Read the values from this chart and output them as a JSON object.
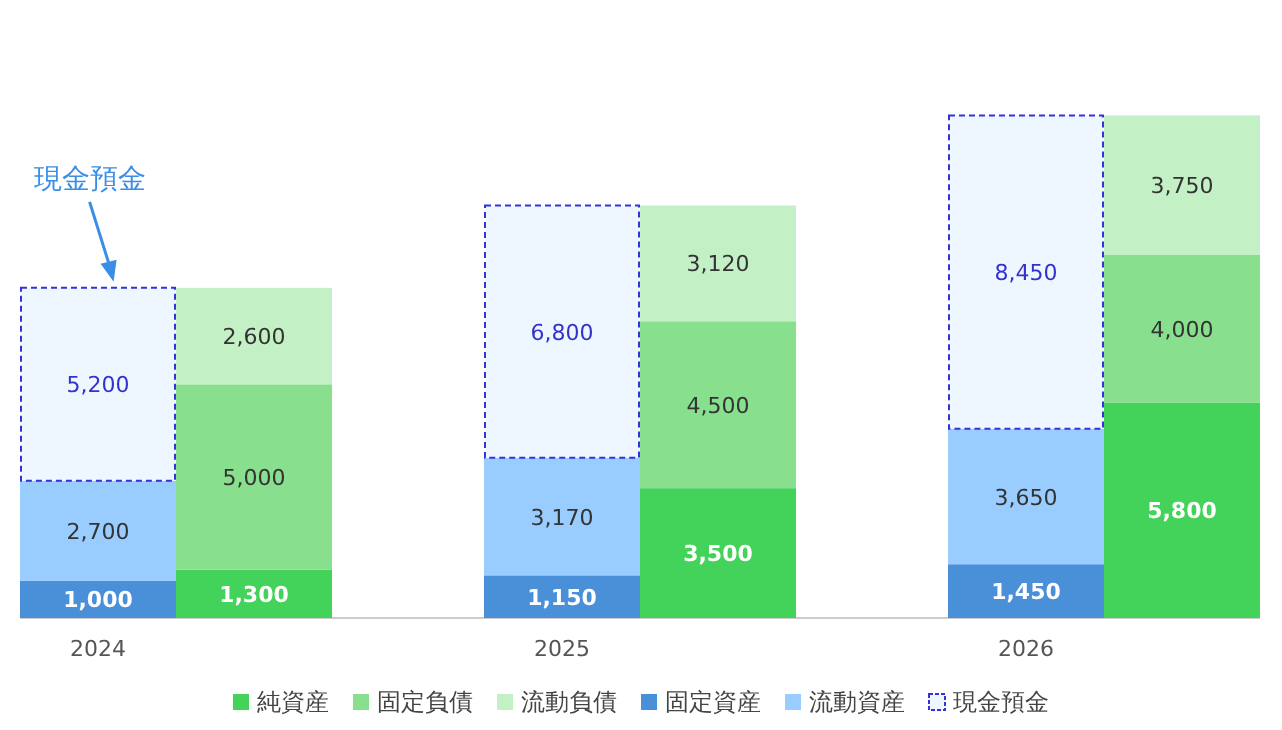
{
  "chart_data": {
    "type": "bar",
    "stacked": true,
    "legend": "bottom",
    "categories": [
      "2024",
      null,
      "2025",
      null,
      "2026",
      null
    ],
    "series": [
      {
        "name": "純資産",
        "color": "#44d35a",
        "values": [
          null,
          1300,
          null,
          3500,
          null,
          5800
        ],
        "value_labels": [
          null,
          "1,300",
          null,
          "3,500",
          null,
          "5,800"
        ]
      },
      {
        "name": "固定負債",
        "color": "#88e08f",
        "values": [
          null,
          5000,
          null,
          4500,
          null,
          4000
        ],
        "value_labels": [
          null,
          "5,000",
          null,
          "4,500",
          null,
          "4,000"
        ]
      },
      {
        "name": "流動負債",
        "color": "#c4f0c6",
        "values": [
          null,
          2600,
          null,
          3120,
          null,
          3750
        ],
        "value_labels": [
          null,
          "2,600",
          null,
          "3,120",
          null,
          "3,750"
        ]
      },
      {
        "name": "固定資産",
        "color": "#4a90d9",
        "values": [
          1000,
          null,
          1150,
          null,
          1450,
          null
        ],
        "value_labels": [
          "1,000",
          null,
          "1,150",
          null,
          "1,450",
          null
        ]
      },
      {
        "name": "流動資産",
        "color": "#99ccff",
        "values": [
          2700,
          null,
          3170,
          null,
          3650,
          null
        ],
        "value_labels": [
          "2,700",
          null,
          "3,170",
          null,
          "3,650",
          null
        ]
      },
      {
        "name": "現金預金",
        "color": "#eef7ff",
        "line_style": "dashed",
        "values": [
          5200,
          null,
          6800,
          null,
          8450,
          null
        ],
        "value_labels": [
          "5,200",
          null,
          "6,800",
          null,
          "8,450",
          null
        ]
      }
    ],
    "annotations": [
      "現金預金"
    ]
  }
}
